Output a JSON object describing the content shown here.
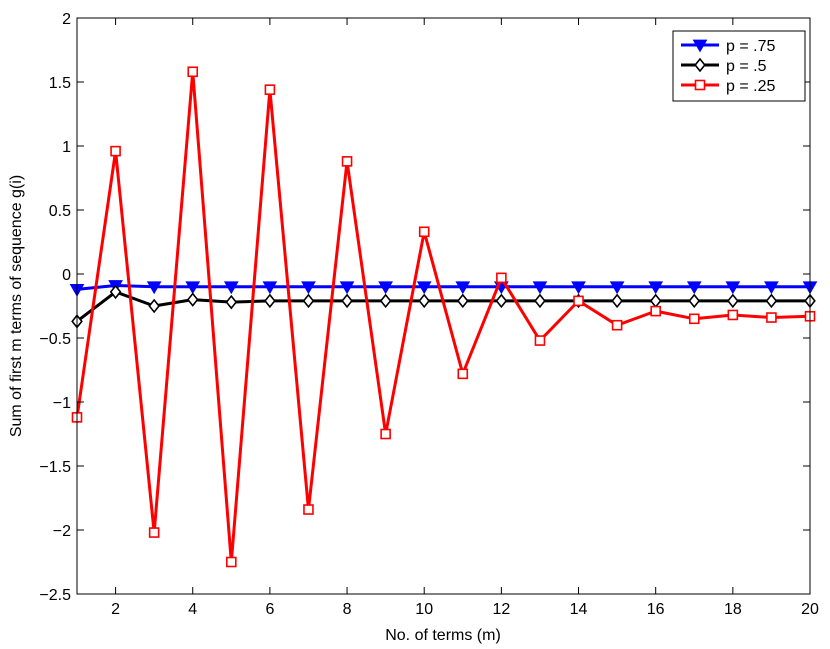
{
  "chart_data": {
    "type": "line",
    "title": "",
    "xlabel": "No. of terms (m)",
    "ylabel": "Sum of first m terms of sequence g(i)",
    "xlim": [
      1,
      20
    ],
    "ylim": [
      -2.5,
      2
    ],
    "xticks": [
      2,
      4,
      6,
      8,
      10,
      12,
      14,
      16,
      18,
      20
    ],
    "yticks": [
      -2.5,
      -2,
      -1.5,
      -1,
      -0.5,
      0,
      0.5,
      1,
      1.5,
      2
    ],
    "xtick_labels": [
      "2",
      "4",
      "6",
      "8",
      "10",
      "12",
      "14",
      "16",
      "18",
      "20"
    ],
    "ytick_labels": [
      "−2.5",
      "−2",
      "−1.5",
      "−1",
      "−0.5",
      "0",
      "0.5",
      "1",
      "1.5",
      "2"
    ],
    "grid": false,
    "legend_position": "top-right",
    "x": [
      1,
      2,
      3,
      4,
      5,
      6,
      7,
      8,
      9,
      10,
      11,
      12,
      13,
      14,
      15,
      16,
      17,
      18,
      19,
      20
    ],
    "series": [
      {
        "name": "p = .75",
        "color": "#0000ff",
        "marker": "triangle-down",
        "values": [
          -0.12,
          -0.09,
          -0.1,
          -0.1,
          -0.1,
          -0.1,
          -0.1,
          -0.1,
          -0.1,
          -0.1,
          -0.1,
          -0.1,
          -0.1,
          -0.1,
          -0.1,
          -0.1,
          -0.1,
          -0.1,
          -0.1,
          -0.1
        ]
      },
      {
        "name": "p = .5",
        "color": "#000000",
        "marker": "diamond",
        "values": [
          -0.37,
          -0.14,
          -0.25,
          -0.2,
          -0.22,
          -0.21,
          -0.21,
          -0.21,
          -0.21,
          -0.21,
          -0.21,
          -0.21,
          -0.21,
          -0.21,
          -0.21,
          -0.21,
          -0.21,
          -0.21,
          -0.21,
          -0.21
        ]
      },
      {
        "name": "p = .25",
        "color": "#ff0000",
        "marker": "square",
        "values": [
          -1.12,
          0.96,
          -2.02,
          1.58,
          -2.25,
          1.44,
          -1.84,
          0.88,
          -1.25,
          0.33,
          -0.78,
          -0.03,
          -0.52,
          -0.21,
          -0.4,
          -0.29,
          -0.35,
          -0.32,
          -0.34,
          -0.33
        ]
      }
    ]
  }
}
